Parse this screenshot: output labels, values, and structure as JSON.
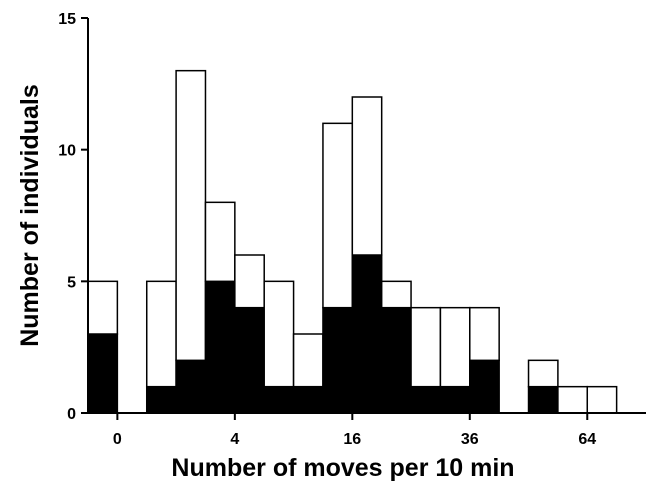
{
  "chart_data": {
    "type": "bar",
    "subtype": "stacked-histogram",
    "xlabel": "Number of moves per 10 min",
    "ylabel": "Number of individuals",
    "ylim": [
      0,
      15
    ],
    "yticks": [
      "0",
      "5",
      "10",
      "15"
    ],
    "xticks": [
      "0",
      "4",
      "16",
      "36",
      "64"
    ],
    "xtick_positions": [
      0.5,
      4.5,
      8.5,
      12.5,
      16.5
    ],
    "xlim": [
      -0.5,
      18.5
    ],
    "categories": [
      "0",
      "1",
      "2",
      "3",
      "4",
      "5",
      "6",
      "7",
      "8",
      "9",
      "10",
      "11",
      "12",
      "13",
      "14",
      "15",
      "16",
      "17",
      "18"
    ],
    "series": [
      {
        "values": [
          3,
          0,
          1,
          2,
          5,
          4,
          1,
          1,
          4,
          6,
          4,
          1,
          1,
          2,
          0,
          1,
          0,
          0,
          0
        ],
        "color": "#000000"
      },
      {
        "values": [
          2,
          0,
          4,
          11,
          3,
          2,
          4,
          2,
          7,
          6,
          1,
          3,
          3,
          2,
          0,
          1,
          1,
          1,
          0
        ],
        "color": "#ffffff"
      }
    ],
    "totals": [
      5,
      0,
      5,
      13,
      8,
      6,
      5,
      3,
      11,
      12,
      5,
      4,
      4,
      4,
      0,
      2,
      1,
      1,
      0
    ],
    "grid": false,
    "legend": "none"
  }
}
